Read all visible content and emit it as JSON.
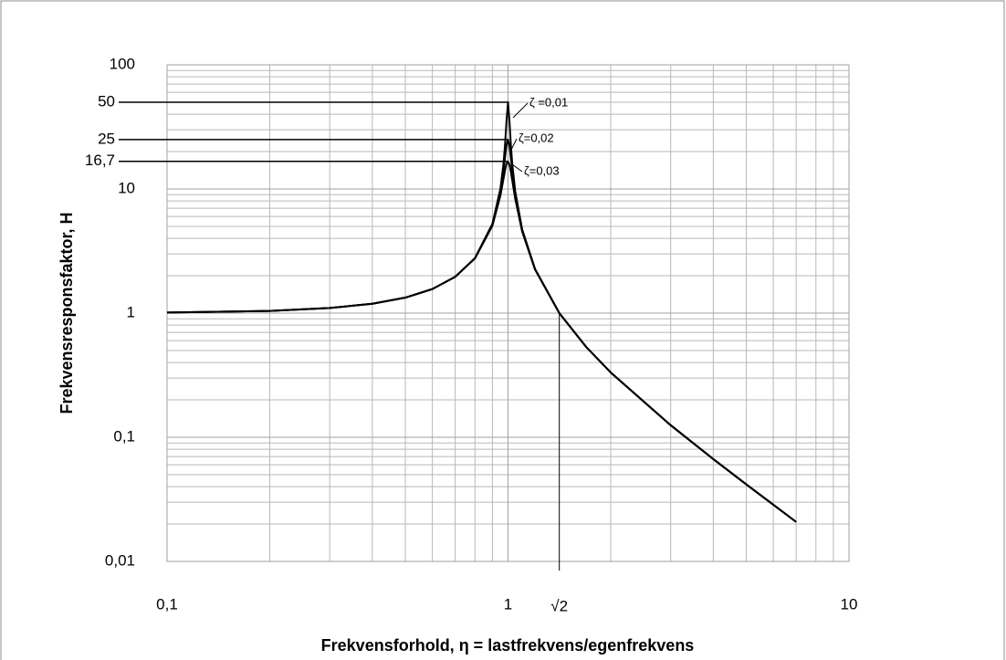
{
  "chart_data": {
    "type": "line",
    "xscale": "log",
    "yscale": "log",
    "grid": true,
    "y_label": "Frekvensresponsfaktor, H",
    "x_label": "Frekvensforhold, η = lastfrekvens/egenfrekvens",
    "xlim": [
      0.1,
      10
    ],
    "ylim": [
      0.01,
      100
    ],
    "xticks": [
      {
        "value": 0.1,
        "label": "0,1"
      },
      1,
      10
    ],
    "yticks": [
      {
        "value": 0.01,
        "label": "0,01"
      },
      {
        "value": 0.1,
        "label": "0,1"
      },
      1,
      10,
      100
    ],
    "xminor": [
      0.2,
      0.3,
      0.4,
      0.5,
      0.6,
      0.7,
      0.8,
      0.9,
      2,
      3,
      4,
      5,
      6,
      7,
      8,
      9
    ],
    "yminor": [
      0.02,
      0.03,
      0.04,
      0.05,
      0.06,
      0.07,
      0.08,
      0.09,
      0.2,
      0.3,
      0.4,
      0.5,
      0.6,
      0.7,
      0.8,
      0.9,
      2,
      3,
      4,
      5,
      6,
      7,
      8,
      9,
      20,
      30,
      40,
      50,
      60,
      70,
      80,
      90
    ],
    "x": [
      0.1,
      0.2,
      0.3,
      0.4,
      0.5,
      0.6,
      0.7,
      0.8,
      0.9,
      0.95,
      0.97,
      0.98,
      0.99,
      1.0,
      1.01,
      1.02,
      1.03,
      1.05,
      1.1,
      1.2,
      1.414,
      1.7,
      2,
      3,
      4,
      5,
      6,
      7
    ],
    "series": [
      {
        "name": "ζ =0,01",
        "color": "#000000",
        "values": [
          1.01,
          1.042,
          1.099,
          1.19,
          1.333,
          1.563,
          1.961,
          2.778,
          5.24,
          10.07,
          16.08,
          22.63,
          35.62,
          50,
          35.09,
          22.1,
          15.55,
          9.56,
          4.736,
          2.269,
          1.0,
          0.529,
          0.333,
          0.125,
          0.0667,
          0.0417,
          0.0286,
          0.0208
        ]
      },
      {
        "name": "ζ=0,02",
        "color": "#000000",
        "values": [
          1.01,
          1.042,
          1.099,
          1.19,
          1.333,
          1.563,
          1.961,
          2.767,
          5.171,
          9.556,
          14.14,
          17.95,
          22.56,
          25,
          22.16,
          17.42,
          13.6,
          9.03,
          4.661,
          2.259,
          1.0,
          0.529,
          0.333,
          0.125,
          0.0667,
          0.0417,
          0.0286,
          0.0208
        ]
      },
      {
        "name": "ζ=0,03",
        "color": "#000000",
        "values": [
          1.01,
          1.042,
          1.099,
          1.19,
          1.333,
          1.563,
          1.961,
          2.753,
          5.063,
          8.854,
          12.06,
          14.11,
          15.96,
          16.67,
          15.66,
          13.64,
          11.53,
          8.31,
          4.543,
          2.243,
          1.0,
          0.529,
          0.333,
          0.125,
          0.0667,
          0.0417,
          0.0286,
          0.0208
        ]
      }
    ],
    "reference_lines": [
      {
        "value": 50,
        "label": "50"
      },
      {
        "value": 25,
        "label": "25"
      },
      {
        "value": 16.7,
        "label": "16,7"
      }
    ],
    "vline": {
      "value": 1.414,
      "label": "√2"
    }
  }
}
